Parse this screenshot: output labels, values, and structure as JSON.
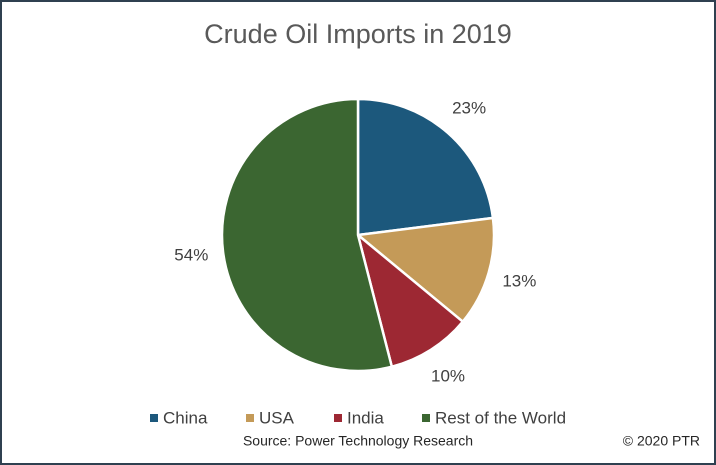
{
  "chart_data": {
    "type": "pie",
    "title": "Crude Oil Imports in 2019",
    "categories": [
      "China",
      "USA",
      "India",
      "Rest of the World"
    ],
    "values": [
      23,
      13,
      10,
      54
    ],
    "value_labels": [
      "23%",
      "13%",
      "10%",
      "54%"
    ],
    "colors": [
      "#1c587c",
      "#c49a58",
      "#9d2833",
      "#3b6631"
    ],
    "legend": "bottom",
    "source": "Source: Power Technology Research",
    "copyright": "© 2020 PTR"
  }
}
